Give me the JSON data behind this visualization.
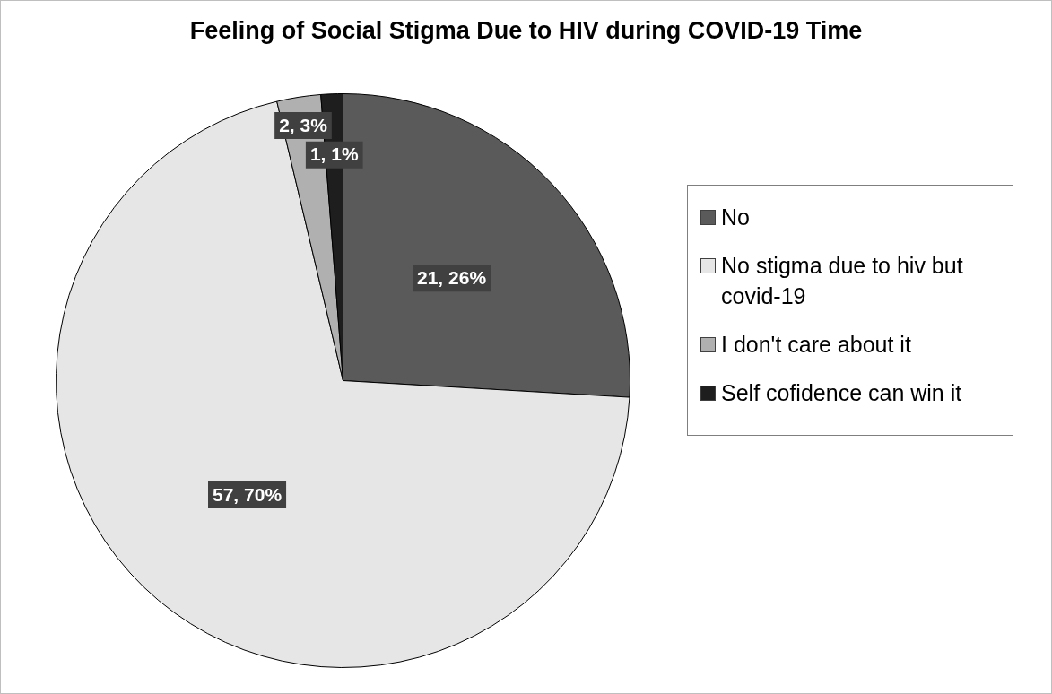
{
  "chart_data": {
    "type": "pie",
    "title": "Feeling of Social Stigma Due to HIV during COVID-19 Time",
    "categories": [
      "No",
      "No stigma due to hiv but covid-19",
      "I don't care about it",
      "Self cofidence can win it"
    ],
    "values": [
      21,
      57,
      2,
      1
    ],
    "colors": [
      "#5a5a5a",
      "#e6e6e6",
      "#b0b0b0",
      "#1e1e1e"
    ],
    "value_labels": [
      "21, 26%",
      "57, 70%",
      "2, 3%",
      "1, 1%"
    ],
    "legend": "right"
  }
}
